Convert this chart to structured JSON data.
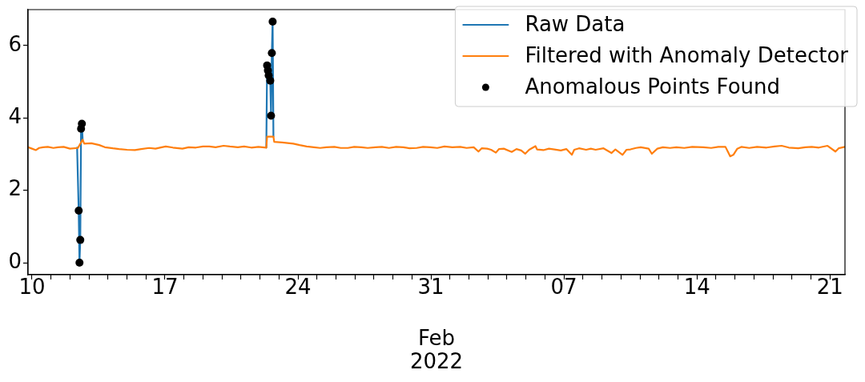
{
  "chart_data": {
    "type": "line",
    "legend": "top right",
    "grid": false,
    "xlabel": "Feb\n2022",
    "xlim": [
      "2022-01-09T19:00",
      "2022-02-21T19:00"
    ],
    "xticks": [
      {
        "value": "2022-01-10",
        "label": "10"
      },
      {
        "value": "2022-01-11",
        "label": null
      },
      {
        "value": "2022-01-12",
        "label": null
      },
      {
        "value": "2022-01-13",
        "label": null
      },
      {
        "value": "2022-01-14",
        "label": null
      },
      {
        "value": "2022-01-15",
        "label": null
      },
      {
        "value": "2022-01-16",
        "label": null
      },
      {
        "value": "2022-01-17",
        "label": "17"
      },
      {
        "value": "2022-01-18",
        "label": null
      },
      {
        "value": "2022-01-19",
        "label": null
      },
      {
        "value": "2022-01-20",
        "label": null
      },
      {
        "value": "2022-01-21",
        "label": null
      },
      {
        "value": "2022-01-22",
        "label": null
      },
      {
        "value": "2022-01-23",
        "label": null
      },
      {
        "value": "2022-01-24",
        "label": "24"
      },
      {
        "value": "2022-01-25",
        "label": null
      },
      {
        "value": "2022-01-26",
        "label": null
      },
      {
        "value": "2022-01-27",
        "label": null
      },
      {
        "value": "2022-01-28",
        "label": null
      },
      {
        "value": "2022-01-29",
        "label": null
      },
      {
        "value": "2022-01-30",
        "label": null
      },
      {
        "value": "2022-01-31",
        "label": "31"
      },
      {
        "value": "2022-02-01",
        "label": null
      },
      {
        "value": "2022-02-02",
        "label": null
      },
      {
        "value": "2022-02-03",
        "label": null
      },
      {
        "value": "2022-02-04",
        "label": null
      },
      {
        "value": "2022-02-05",
        "label": null
      },
      {
        "value": "2022-02-06",
        "label": null
      },
      {
        "value": "2022-02-07",
        "label": "07"
      },
      {
        "value": "2022-02-08",
        "label": null
      },
      {
        "value": "2022-02-09",
        "label": null
      },
      {
        "value": "2022-02-10",
        "label": null
      },
      {
        "value": "2022-02-11",
        "label": null
      },
      {
        "value": "2022-02-12",
        "label": null
      },
      {
        "value": "2022-02-13",
        "label": null
      },
      {
        "value": "2022-02-14",
        "label": "14"
      },
      {
        "value": "2022-02-15",
        "label": null
      },
      {
        "value": "2022-02-16",
        "label": null
      },
      {
        "value": "2022-02-17",
        "label": null
      },
      {
        "value": "2022-02-18",
        "label": null
      },
      {
        "value": "2022-02-19",
        "label": null
      },
      {
        "value": "2022-02-20",
        "label": null
      },
      {
        "value": "2022-02-21",
        "label": "21"
      }
    ],
    "ylim": [
      -0.33,
      6.99
    ],
    "yticks": [
      0,
      2,
      4,
      6
    ],
    "series": [
      {
        "name": "Raw Data",
        "color": "#1f77b4",
        "x": [
          "2022-01-12T09:00",
          "2022-01-12T11:00",
          "2022-01-12T12:00",
          "2022-01-12T13:00",
          "2022-01-12T14:00",
          "2022-01-12T15:00",
          "2022-01-12T16:00",
          "2022-01-13T00:00",
          "2022-01-22T08:00",
          "2022-01-22T09:00",
          "2022-01-22T10:00",
          "2022-01-22T11:00",
          "2022-01-22T13:00",
          "2022-01-22T14:00",
          "2022-01-22T15:00",
          "2022-01-22T16:00",
          "2022-01-22T17:00"
        ],
        "values": [
          3.18,
          1.44,
          0,
          0.63,
          3.7,
          3.84,
          3.4,
          null,
          3.18,
          5.45,
          5.31,
          5.17,
          5.03,
          4.06,
          5.79,
          6.66,
          3.48
        ]
      },
      {
        "name": "Filtered with Anomaly Detector",
        "color": "#ff7f0e",
        "x": [
          "2022-01-09T19:00",
          "2022-01-10T00:00",
          "2022-01-10T05:00",
          "2022-01-10T09:00",
          "2022-01-10T14:00",
          "2022-01-10T20:00",
          "2022-01-11T03:00",
          "2022-01-11T09:00",
          "2022-01-11T16:00",
          "2022-01-12T00:00",
          "2022-01-12T10:00",
          "2022-01-12T16:00",
          "2022-01-12T18:00",
          "2022-01-13T03:00",
          "2022-01-13T13:00",
          "2022-01-13T20:00",
          "2022-01-14T06:00",
          "2022-01-14T14:00",
          "2022-01-15T00:00",
          "2022-01-15T10:00",
          "2022-01-15T18:00",
          "2022-01-16T04:00",
          "2022-01-16T12:00",
          "2022-01-16T20:00",
          "2022-01-17T01:00",
          "2022-01-17T10:00",
          "2022-01-17T22:00",
          "2022-01-18T06:00",
          "2022-01-18T15:00",
          "2022-01-19T00:00",
          "2022-01-19T08:00",
          "2022-01-19T16:00",
          "2022-01-20T02:00",
          "2022-01-20T10:00",
          "2022-01-20T20:00",
          "2022-01-21T04:00",
          "2022-01-21T13:00",
          "2022-01-21T22:00",
          "2022-01-22T08:00",
          "2022-01-22T09:00",
          "2022-01-22T17:00",
          "2022-01-22T18:00",
          "2022-01-23T04:00",
          "2022-01-23T18:00",
          "2022-01-24T02:00",
          "2022-01-24T11:00",
          "2022-01-24T20:00",
          "2022-01-25T04:00",
          "2022-01-25T12:00",
          "2022-01-25T22:00",
          "2022-01-26T06:00",
          "2022-01-26T15:00",
          "2022-01-26T23:00",
          "2022-01-27T08:00",
          "2022-01-27T16:00",
          "2022-01-28T02:00",
          "2022-01-28T10:00",
          "2022-01-28T19:00",
          "2022-01-29T04:00",
          "2022-01-29T13:00",
          "2022-01-29T21:00",
          "2022-01-30T06:00",
          "2022-01-30T14:00",
          "2022-01-30T23:00",
          "2022-01-31T08:00",
          "2022-01-31T17:00",
          "2022-02-01T03:00",
          "2022-02-01T13:00",
          "2022-02-01T21:00",
          "2022-02-02T06:00",
          "2022-02-02T12:00",
          "2022-02-02T16:00",
          "2022-02-02T23:00",
          "2022-02-03T04:00",
          "2022-02-03T10:00",
          "2022-02-03T14:00",
          "2022-02-03T20:00",
          "2022-02-04T06:00",
          "2022-02-04T12:00",
          "2022-02-04T18:00",
          "2022-02-04T23:00",
          "2022-02-05T04:00",
          "2022-02-05T12:00",
          "2022-02-05T14:00",
          "2022-02-05T22:00",
          "2022-02-06T05:00",
          "2022-02-06T12:00",
          "2022-02-06T20:00",
          "2022-02-07T03:00",
          "2022-02-07T10:00",
          "2022-02-07T13:00",
          "2022-02-07T19:00",
          "2022-02-08T04:00",
          "2022-02-08T10:00",
          "2022-02-08T16:00",
          "2022-02-09T02:00",
          "2022-02-09T12:00",
          "2022-02-09T17:00",
          "2022-02-10T02:00",
          "2022-02-10T07:00",
          "2022-02-10T12:00",
          "2022-02-10T19:00",
          "2022-02-11T01:00",
          "2022-02-11T11:00",
          "2022-02-11T15:00",
          "2022-02-11T22:00",
          "2022-02-12T05:00",
          "2022-02-12T14:00",
          "2022-02-12T22:00",
          "2022-02-13T08:00",
          "2022-02-13T18:00",
          "2022-02-14T08:00",
          "2022-02-14T18:00",
          "2022-02-15T03:00",
          "2022-02-15T12:00",
          "2022-02-15T15:00",
          "2022-02-15T18:00",
          "2022-02-15T22:00",
          "2022-02-16T03:00",
          "2022-02-16T08:00",
          "2022-02-16T18:00",
          "2022-02-17T04:00",
          "2022-02-17T16:00",
          "2022-02-18T02:00",
          "2022-02-18T11:00",
          "2022-02-18T20:00",
          "2022-02-19T08:00",
          "2022-02-19T17:00",
          "2022-02-20T01:00",
          "2022-02-20T10:00",
          "2022-02-20T21:00",
          "2022-02-21T07:00",
          "2022-02-21T11:00",
          "2022-02-21T19:00"
        ],
        "values": [
          3.19,
          3.15,
          3.11,
          3.17,
          3.19,
          3.2,
          3.17,
          3.19,
          3.2,
          3.15,
          3.17,
          3.4,
          3.29,
          3.3,
          3.25,
          3.19,
          3.16,
          3.14,
          3.12,
          3.11,
          3.14,
          3.17,
          3.15,
          3.19,
          3.21,
          3.18,
          3.15,
          3.19,
          3.18,
          3.21,
          3.21,
          3.19,
          3.23,
          3.21,
          3.19,
          3.21,
          3.18,
          3.2,
          3.18,
          3.48,
          3.48,
          3.34,
          3.32,
          3.29,
          3.25,
          3.21,
          3.19,
          3.17,
          3.19,
          3.2,
          3.17,
          3.17,
          3.2,
          3.19,
          3.17,
          3.19,
          3.2,
          3.17,
          3.2,
          3.19,
          3.16,
          3.17,
          3.2,
          3.19,
          3.17,
          3.21,
          3.19,
          3.2,
          3.17,
          3.19,
          3.07,
          3.16,
          3.15,
          3.12,
          3.04,
          3.14,
          3.15,
          3.06,
          3.14,
          3.1,
          3.01,
          3.12,
          3.22,
          3.13,
          3.11,
          3.15,
          3.13,
          3.1,
          3.14,
          2.98,
          3.12,
          3.16,
          3.12,
          3.15,
          3.12,
          3.16,
          3.03,
          3.13,
          2.98,
          3.12,
          3.13,
          3.17,
          3.19,
          3.15,
          3.01,
          3.15,
          3.19,
          3.17,
          3.19,
          3.17,
          3.2,
          3.19,
          3.17,
          3.2,
          3.2,
          3.07,
          2.94,
          2.98,
          3.15,
          3.2,
          3.17,
          3.2,
          3.18,
          3.21,
          3.23,
          3.18,
          3.16,
          3.19,
          3.2,
          3.18,
          3.23,
          3.07,
          3.16,
          3.2
        ]
      },
      {
        "name": "Anomalous Points Found",
        "type": "scatter",
        "marker": "circle",
        "color": "#000000",
        "x": [
          "2022-01-12T11:00",
          "2022-01-12T12:00",
          "2022-01-12T13:00",
          "2022-01-12T14:00",
          "2022-01-12T15:00",
          "2022-01-22T09:00",
          "2022-01-22T10:00",
          "2022-01-22T11:00",
          "2022-01-22T13:00",
          "2022-01-22T14:00",
          "2022-01-22T15:00",
          "2022-01-22T16:00"
        ],
        "values": [
          1.44,
          0,
          0.63,
          3.7,
          3.84,
          5.45,
          5.31,
          5.17,
          5.03,
          4.06,
          5.79,
          6.66
        ]
      }
    ]
  }
}
